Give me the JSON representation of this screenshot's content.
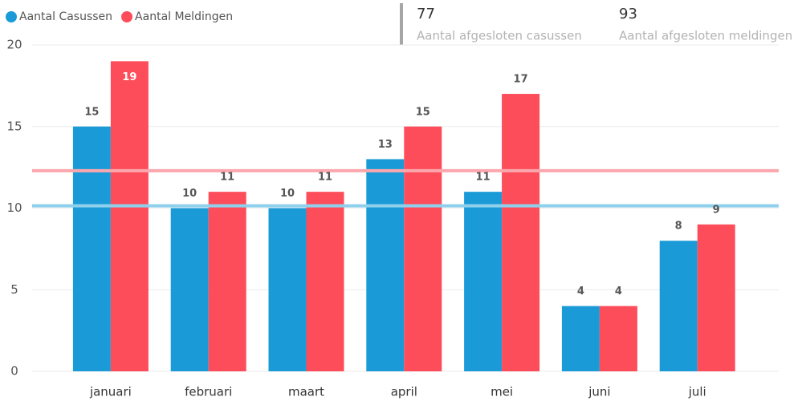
{
  "chart_data": {
    "type": "bar",
    "categories": [
      "januari",
      "februari",
      "maart",
      "april",
      "mei",
      "juni",
      "juli"
    ],
    "series": [
      {
        "name": "Aantal Casussen",
        "color": "#1a9bd7",
        "average_color": "#8fd0ec",
        "values": [
          15,
          10,
          10,
          13,
          11,
          4,
          8
        ],
        "average": 10.14
      },
      {
        "name": "Aantal Meldingen",
        "color": "#fd4d5a",
        "average_color": "#fca7ae",
        "values": [
          19,
          11,
          11,
          15,
          17,
          4,
          9
        ],
        "average": 12.29
      }
    ],
    "ylim": [
      0,
      20
    ],
    "yticks": [
      0,
      5,
      10,
      15,
      20
    ],
    "grid": true,
    "legend": "top-left"
  },
  "cards": [
    {
      "value": "77",
      "label": "Aantal afgesloten casussen"
    },
    {
      "value": "93",
      "label": "Aantal afgesloten meldingen"
    }
  ]
}
